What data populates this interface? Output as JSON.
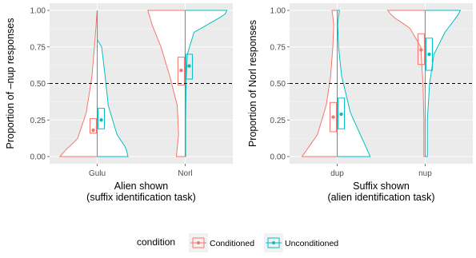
{
  "chart_data": [
    {
      "type": "violin",
      "ylabel": "Proportion of –nup responses",
      "xlabel_lines": [
        "Alien shown",
        "(suffix identification task)"
      ],
      "categories": [
        "Gulu",
        "Norl"
      ],
      "y_ticks": [
        "0.00",
        "0.25",
        "0.50",
        "0.75",
        "1.00"
      ],
      "ylim": [
        0,
        1
      ],
      "reference_line": 0.5,
      "grid": true,
      "series": [
        {
          "name": "Conditioned",
          "means": [
            0.18,
            0.59
          ],
          "ci": [
            [
              0.16,
              0.26
            ],
            [
              0.49,
              0.68
            ]
          ]
        },
        {
          "name": "Unconditioned",
          "means": [
            0.25,
            0.62
          ],
          "ci": [
            [
              0.19,
              0.33
            ],
            [
              0.53,
              0.7
            ]
          ]
        }
      ]
    },
    {
      "type": "violin",
      "ylabel": "Proportion of Norl responses",
      "xlabel_lines": [
        "Suffix shown",
        "(alien identification task)"
      ],
      "categories": [
        "dup",
        "nup"
      ],
      "y_ticks": [
        "0.00",
        "0.25",
        "0.50",
        "0.75",
        "1.00"
      ],
      "ylim": [
        0,
        1
      ],
      "reference_line": 0.5,
      "grid": true,
      "series": [
        {
          "name": "Conditioned",
          "means": [
            0.27,
            0.73
          ],
          "ci": [
            [
              0.17,
              0.37
            ],
            [
              0.63,
              0.84
            ]
          ]
        },
        {
          "name": "Unconditioned",
          "means": [
            0.29,
            0.7
          ],
          "ci": [
            [
              0.19,
              0.4
            ],
            [
              0.59,
              0.81
            ]
          ]
        }
      ]
    }
  ],
  "legend": {
    "title": "condition",
    "position": "bottom",
    "items": [
      "Conditioned",
      "Unconditioned"
    ]
  },
  "colors": {
    "Conditioned": "#F8766D",
    "Unconditioned": "#00BFC4",
    "panel_background": "#EBEBEB",
    "grid": "#FFFFFF",
    "reference_line": "#000000"
  }
}
